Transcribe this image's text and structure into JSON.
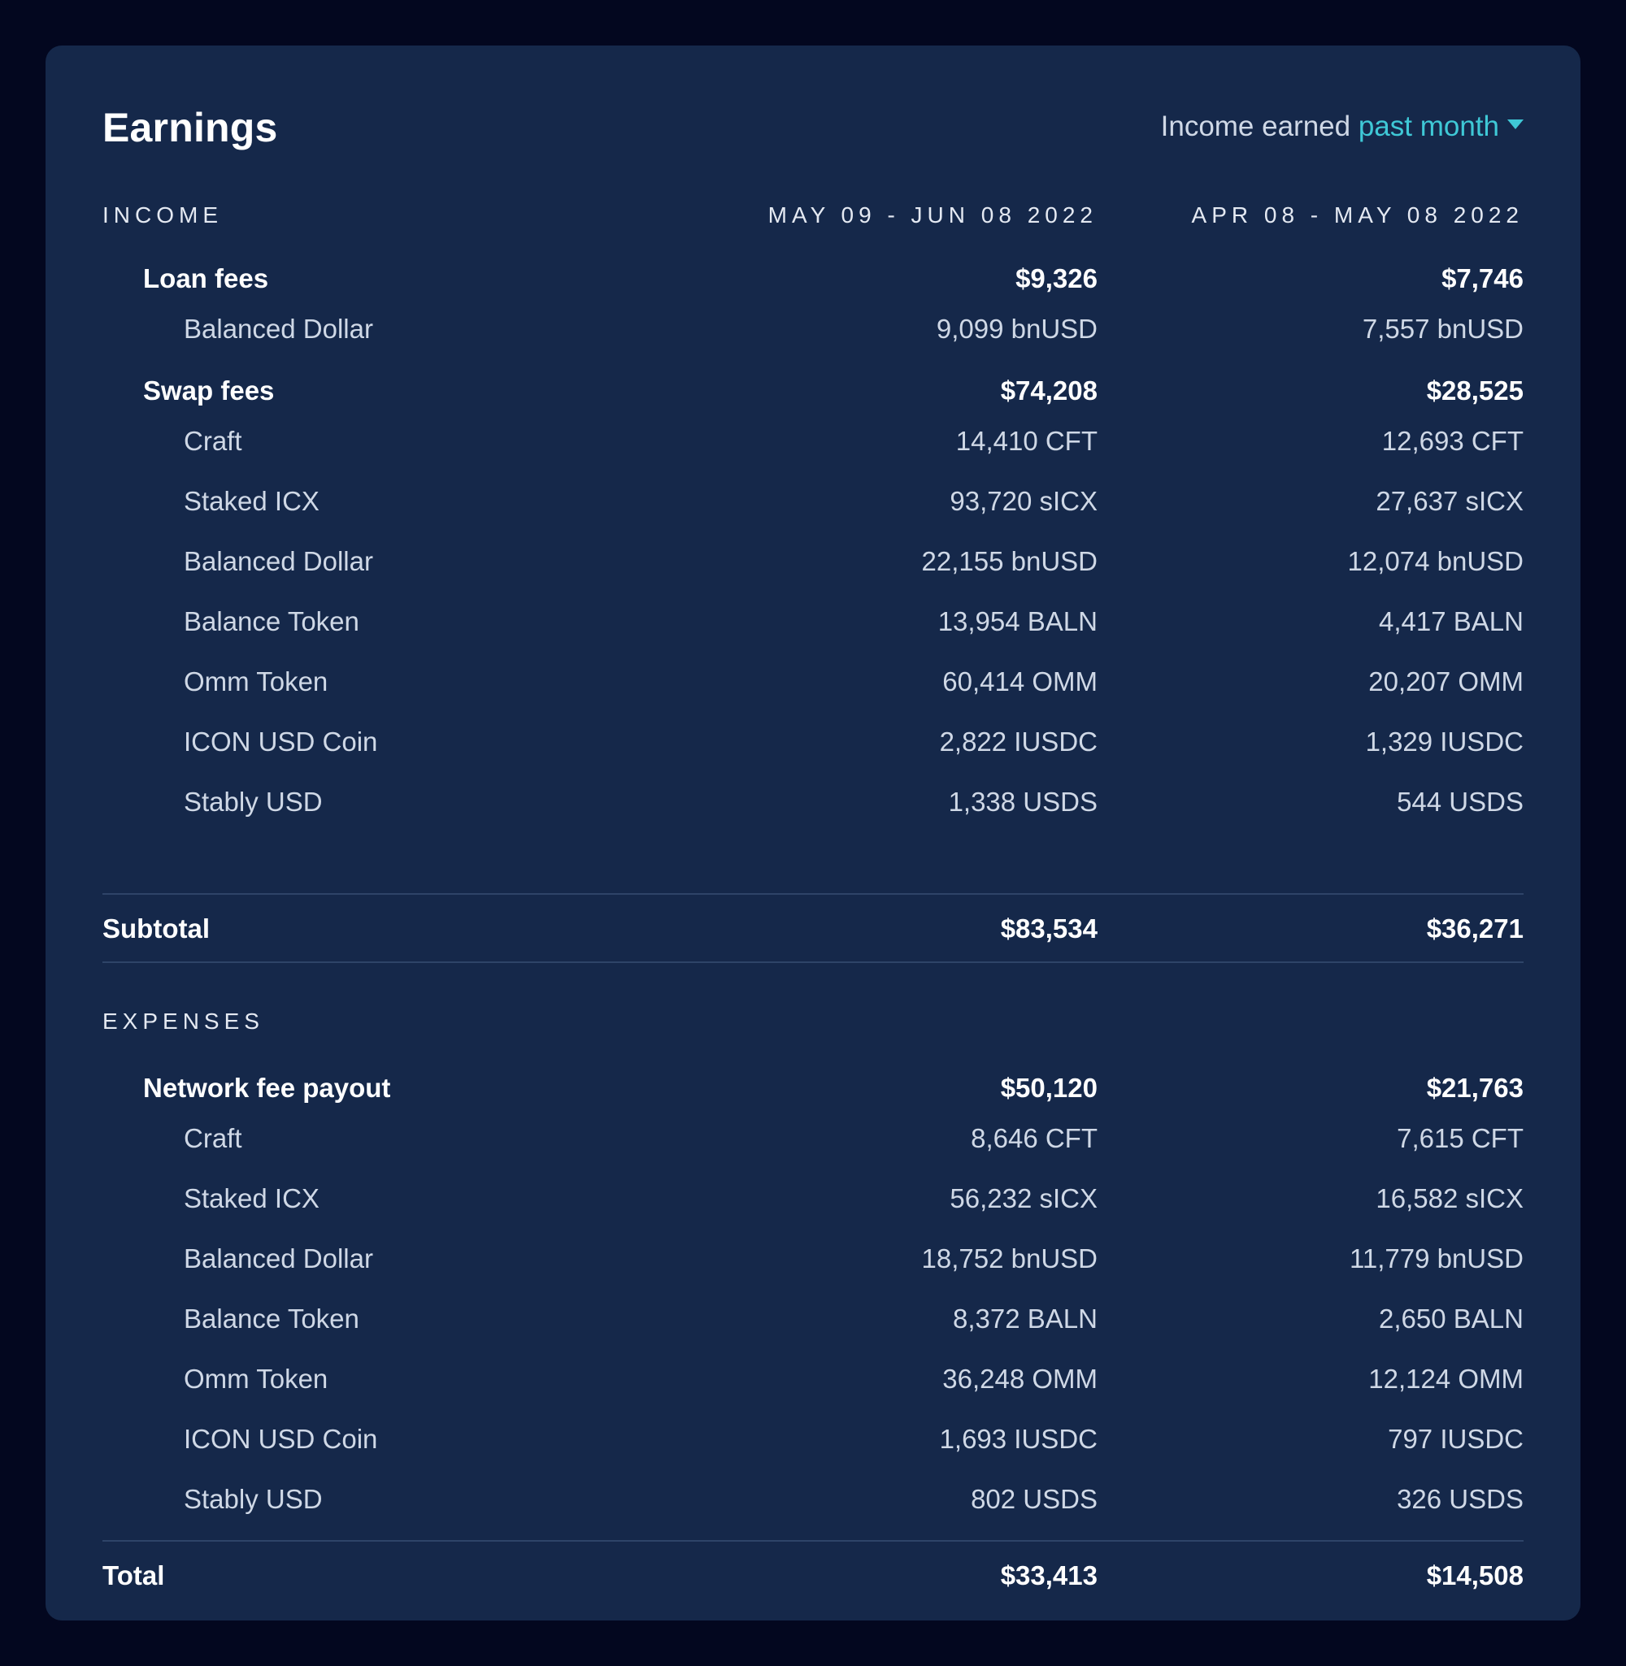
{
  "header": {
    "title": "Earnings",
    "period_prefix": "Income earned",
    "period_value": "past month"
  },
  "colors": {
    "background": "#03071f",
    "card": "#15284a",
    "accent": "#3fc8d6"
  },
  "income": {
    "heading": "INCOME",
    "col1": "MAY 09 - JUN 08 2022",
    "col2": "APR 08 - MAY 08 2022",
    "loan_fees": {
      "label": "Loan fees",
      "v1": "$9,326",
      "v2": "$7,746",
      "items": [
        {
          "label": "Balanced Dollar",
          "v1": "9,099 bnUSD",
          "v2": "7,557 bnUSD"
        }
      ]
    },
    "swap_fees": {
      "label": "Swap fees",
      "v1": "$74,208",
      "v2": "$28,525",
      "items": [
        {
          "label": "Craft",
          "v1": "14,410 CFT",
          "v2": "12,693 CFT"
        },
        {
          "label": "Staked ICX",
          "v1": "93,720 sICX",
          "v2": "27,637 sICX"
        },
        {
          "label": "Balanced Dollar",
          "v1": "22,155 bnUSD",
          "v2": "12,074 bnUSD"
        },
        {
          "label": "Balance Token",
          "v1": "13,954 BALN",
          "v2": "4,417 BALN"
        },
        {
          "label": "Omm Token",
          "v1": "60,414 OMM",
          "v2": "20,207 OMM"
        },
        {
          "label": "ICON USD Coin",
          "v1": "2,822 IUSDC",
          "v2": "1,329 IUSDC"
        },
        {
          "label": "Stably USD",
          "v1": "1,338 USDS",
          "v2": "544 USDS"
        }
      ]
    },
    "subtotal": {
      "label": "Subtotal",
      "v1": "$83,534",
      "v2": "$36,271"
    }
  },
  "expenses": {
    "heading": "EXPENSES",
    "network_fee_payout": {
      "label": "Network fee payout",
      "v1": "$50,120",
      "v2": "$21,763",
      "items": [
        {
          "label": "Craft",
          "v1": "8,646 CFT",
          "v2": "7,615 CFT"
        },
        {
          "label": "Staked ICX",
          "v1": "56,232 sICX",
          "v2": "16,582 sICX"
        },
        {
          "label": "Balanced Dollar",
          "v1": "18,752 bnUSD",
          "v2": "11,779 bnUSD"
        },
        {
          "label": "Balance Token",
          "v1": "8,372 BALN",
          "v2": "2,650 BALN"
        },
        {
          "label": "Omm Token",
          "v1": "36,248 OMM",
          "v2": "12,124 OMM"
        },
        {
          "label": "ICON USD Coin",
          "v1": "1,693 IUSDC",
          "v2": "797 IUSDC"
        },
        {
          "label": "Stably USD",
          "v1": "802 USDS",
          "v2": "326 USDS"
        }
      ]
    },
    "total": {
      "label": "Total",
      "v1": "$33,413",
      "v2": "$14,508"
    }
  }
}
